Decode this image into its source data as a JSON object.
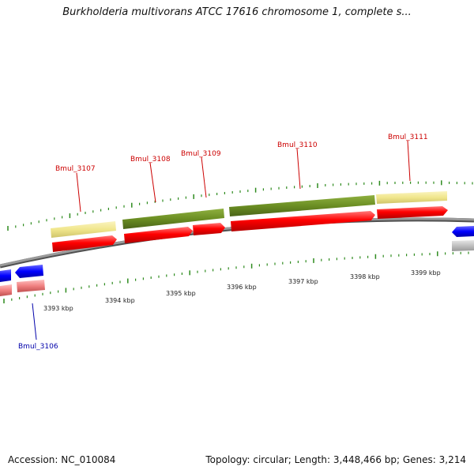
{
  "title": "Burkholderia multivorans ATCC 17616 chromosome 1, complete s...",
  "footer": {
    "accession": "Accession: NC_010084",
    "summary": "Topology: circular; Length: 3,448,466 bp; Genes: 3,214"
  },
  "colors": {
    "backbone": "#808080",
    "tick": "#2e8b1e",
    "cds_red": "#ff0000",
    "cds_pink": "#f08080",
    "gene_olive": "#6b8e23",
    "gene_khaki": "#f0e68c",
    "cds_blue": "#0000ff",
    "gray_feature": "#c0c0c0",
    "label_red": "#cc0000",
    "label_blue": "#0000aa"
  },
  "scale_labels": [
    "3393 kbp",
    "3394 kbp",
    "3395 kbp",
    "3396 kbp",
    "3397 kbp",
    "3398 kbp",
    "3399 kbp"
  ],
  "gene_labels": [
    {
      "name": "Bmul_3106",
      "strand": "minus"
    },
    {
      "name": "Bmul_3107",
      "strand": "plus"
    },
    {
      "name": "Bmul_3108",
      "strand": "plus"
    },
    {
      "name": "Bmul_3109",
      "strand": "plus"
    },
    {
      "name": "Bmul_3110",
      "strand": "plus"
    },
    {
      "name": "Bmul_3111",
      "strand": "plus"
    }
  ]
}
